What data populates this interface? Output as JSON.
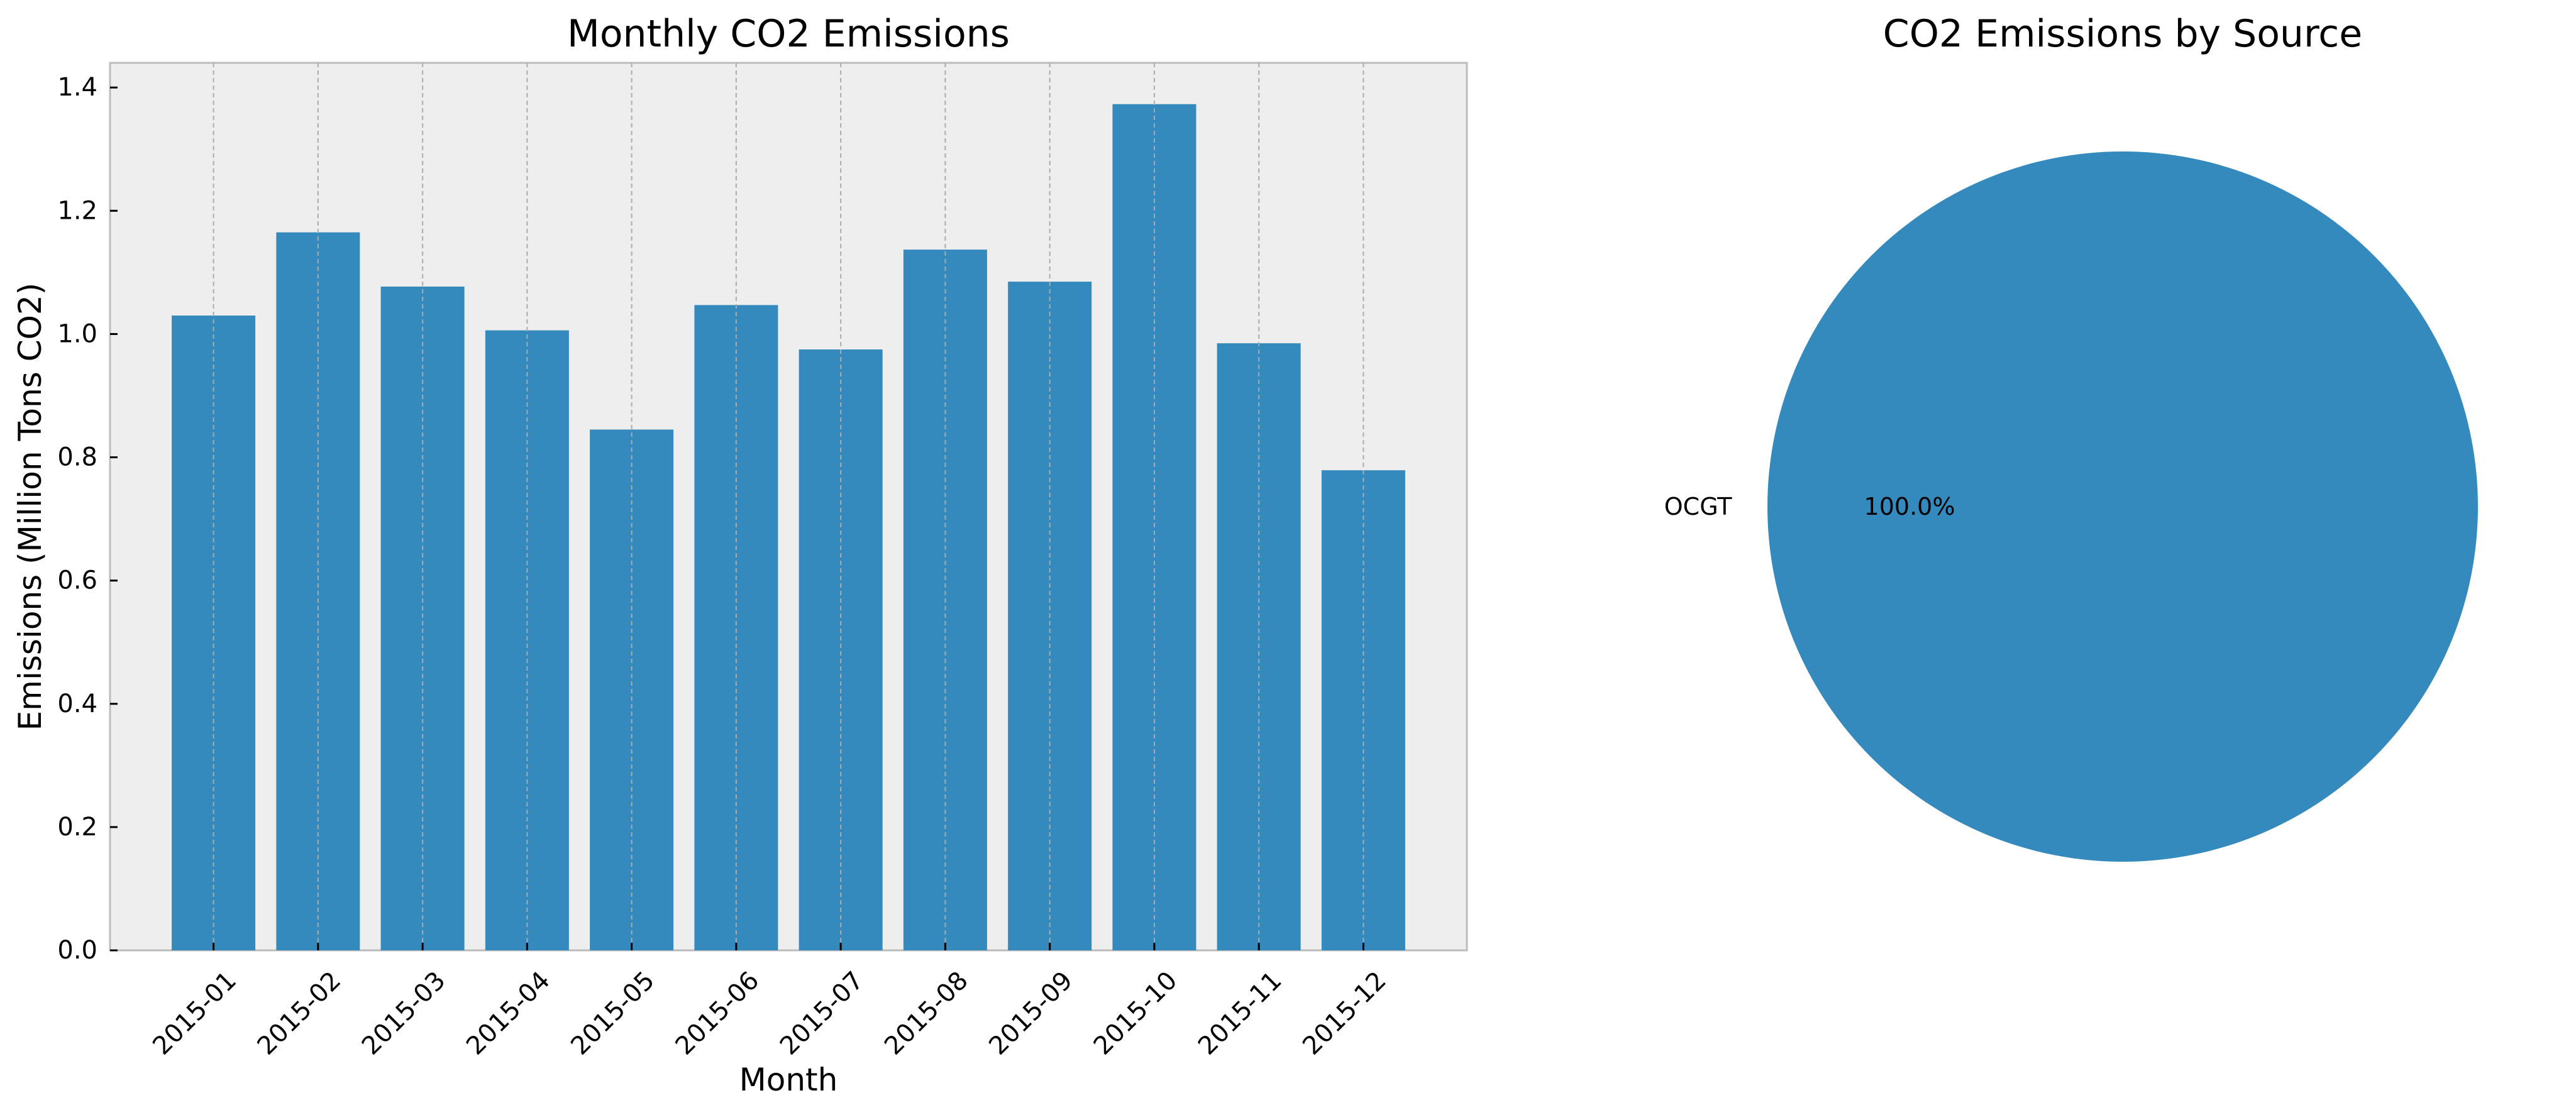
{
  "colors": {
    "bar": "#348abd",
    "pie": "#348abd",
    "plot_background": "#eeeeee",
    "axes_edge": "#bcbcbc",
    "grid": "#b0b0b0"
  },
  "chart_data": [
    {
      "type": "bar",
      "title": "Monthly CO2 Emissions",
      "xlabel": "Month",
      "ylabel": "Emissions (Million Tons CO2)",
      "categories": [
        "2015-01",
        "2015-02",
        "2015-03",
        "2015-04",
        "2015-05",
        "2015-06",
        "2015-07",
        "2015-08",
        "2015-09",
        "2015-10",
        "2015-11",
        "2015-12"
      ],
      "values": [
        1.03,
        1.165,
        1.077,
        1.006,
        0.845,
        1.047,
        0.975,
        1.137,
        1.085,
        1.373,
        0.985,
        0.779
      ],
      "ylim": [
        0,
        1.44
      ],
      "yticks": [
        "0.0",
        "0.2",
        "0.4",
        "0.6",
        "0.8",
        "1.0",
        "1.2",
        "1.4"
      ],
      "grid": "vertical dashed",
      "xtick_rotation_deg": 45
    },
    {
      "type": "pie",
      "title": "CO2 Emissions by Source",
      "slices": [
        {
          "label": "OCGT",
          "value": 100.0,
          "pct_label": "100.0%"
        }
      ]
    }
  ]
}
